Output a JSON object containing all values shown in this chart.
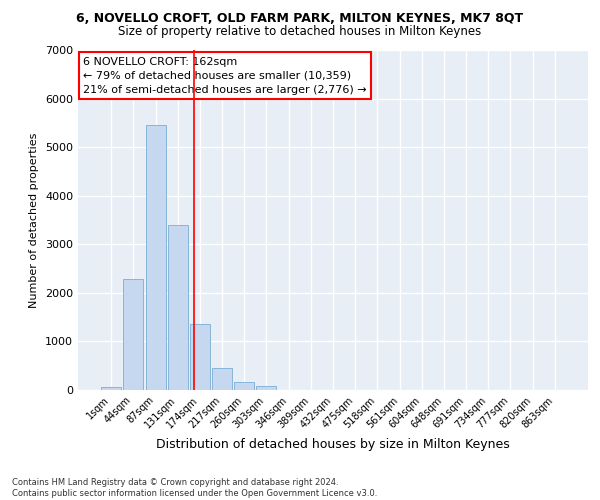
{
  "title_line1": "6, NOVELLO CROFT, OLD FARM PARK, MILTON KEYNES, MK7 8QT",
  "title_line2": "Size of property relative to detached houses in Milton Keynes",
  "xlabel": "Distribution of detached houses by size in Milton Keynes",
  "ylabel": "Number of detached properties",
  "footnote": "Contains HM Land Registry data © Crown copyright and database right 2024.\nContains public sector information licensed under the Open Government Licence v3.0.",
  "bar_labels": [
    "1sqm",
    "44sqm",
    "87sqm",
    "131sqm",
    "174sqm",
    "217sqm",
    "260sqm",
    "303sqm",
    "346sqm",
    "389sqm",
    "432sqm",
    "475sqm",
    "518sqm",
    "561sqm",
    "604sqm",
    "648sqm",
    "691sqm",
    "734sqm",
    "777sqm",
    "820sqm",
    "863sqm"
  ],
  "bar_values": [
    70,
    2280,
    5450,
    3400,
    1350,
    450,
    175,
    90,
    0,
    0,
    0,
    0,
    0,
    0,
    0,
    0,
    0,
    0,
    0,
    0,
    0
  ],
  "bar_color": "#c5d8ef",
  "bar_edge_color": "#7badd4",
  "bg_color": "#e8eef5",
  "grid_color": "#ffffff",
  "annotation_text": "6 NOVELLO CROFT: 162sqm\n← 79% of detached houses are smaller (10,359)\n21% of semi-detached houses are larger (2,776) →",
  "annotation_box_color": "white",
  "annotation_box_edge_color": "red",
  "vline_x": 3.72,
  "vline_color": "red",
  "ylim": [
    0,
    7000
  ],
  "yticks": [
    0,
    1000,
    2000,
    3000,
    4000,
    5000,
    6000,
    7000
  ]
}
